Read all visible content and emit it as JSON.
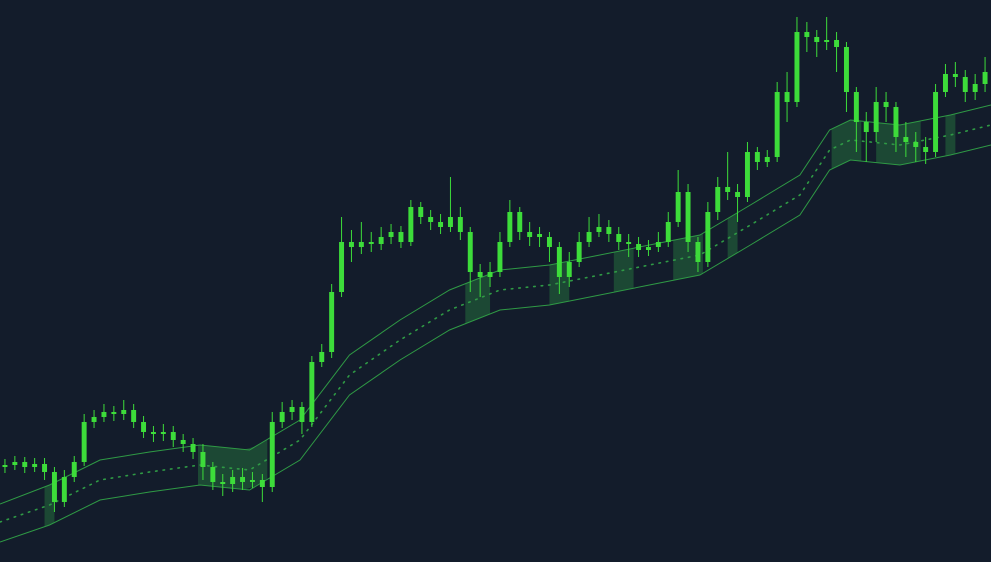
{
  "chart_data": {
    "type": "candlestick",
    "background": "#131c2b",
    "color": "#3ddc3a",
    "band_color": "#2f9a45",
    "zone_color": "#2f9a45",
    "xlim": [
      -0.5,
      99.6
    ],
    "ylim": [
      0,
      562
    ],
    "open": [
      95,
      97,
      100,
      95,
      98,
      90,
      60,
      85,
      100,
      140,
      145,
      150,
      148,
      152,
      140,
      130,
      128,
      130,
      122,
      118,
      110,
      95,
      80,
      78,
      85,
      80,
      82,
      75,
      140,
      150,
      155,
      140,
      200,
      210,
      270,
      320,
      315,
      320,
      318,
      325,
      330,
      320,
      355,
      345,
      340,
      335,
      345,
      330,
      290,
      285,
      290,
      320,
      350,
      330,
      328,
      325,
      315,
      285,
      300,
      320,
      330,
      335,
      328,
      320,
      318,
      312,
      315,
      320,
      340,
      370,
      320,
      300,
      350,
      375,
      370,
      365,
      410,
      400,
      405,
      470,
      460,
      530,
      525,
      520,
      522,
      515,
      470,
      440,
      430,
      460,
      455,
      425,
      420,
      415,
      410,
      470,
      488,
      485,
      470,
      478
    ],
    "high": [
      103,
      106,
      105,
      104,
      104,
      95,
      92,
      106,
      148,
      152,
      158,
      156,
      162,
      158,
      146,
      136,
      138,
      136,
      128,
      124,
      118,
      100,
      88,
      92,
      94,
      90,
      88,
      150,
      160,
      162,
      160,
      206,
      218,
      278,
      345,
      332,
      340,
      330,
      335,
      338,
      336,
      362,
      360,
      352,
      348,
      385,
      355,
      335,
      298,
      300,
      330,
      362,
      355,
      340,
      335,
      330,
      320,
      310,
      330,
      345,
      348,
      342,
      335,
      328,
      325,
      322,
      330,
      350,
      392,
      378,
      325,
      360,
      385,
      410,
      378,
      420,
      415,
      412,
      480,
      490,
      545,
      540,
      532,
      545,
      530,
      520,
      475,
      450,
      475,
      470,
      460,
      440,
      430,
      425,
      478,
      498,
      500,
      492,
      488,
      505
    ],
    "low": [
      89,
      92,
      89,
      90,
      82,
      50,
      55,
      80,
      96,
      134,
      140,
      141,
      142,
      134,
      124,
      120,
      121,
      115,
      110,
      103,
      82,
      72,
      66,
      70,
      72,
      74,
      60,
      70,
      134,
      142,
      128,
      135,
      195,
      204,
      265,
      300,
      308,
      310,
      312,
      318,
      314,
      316,
      338,
      332,
      328,
      330,
      322,
      270,
      265,
      275,
      285,
      315,
      322,
      316,
      315,
      300,
      268,
      275,
      295,
      315,
      325,
      320,
      312,
      305,
      305,
      306,
      310,
      315,
      335,
      310,
      290,
      295,
      342,
      362,
      340,
      360,
      392,
      395,
      400,
      440,
      455,
      510,
      505,
      512,
      490,
      450,
      410,
      400,
      420,
      440,
      410,
      405,
      400,
      398,
      405,
      465,
      475,
      460,
      462,
      470
    ],
    "close": [
      97,
      100,
      95,
      98,
      90,
      60,
      85,
      100,
      140,
      145,
      150,
      148,
      152,
      140,
      130,
      128,
      130,
      122,
      118,
      110,
      95,
      80,
      78,
      85,
      80,
      82,
      75,
      140,
      150,
      155,
      140,
      200,
      210,
      270,
      320,
      315,
      320,
      318,
      325,
      330,
      320,
      355,
      345,
      340,
      335,
      345,
      330,
      290,
      285,
      290,
      320,
      350,
      330,
      325,
      325,
      315,
      285,
      300,
      320,
      330,
      335,
      328,
      320,
      318,
      312,
      315,
      320,
      340,
      370,
      320,
      300,
      350,
      375,
      370,
      365,
      410,
      400,
      405,
      470,
      460,
      530,
      525,
      520,
      522,
      515,
      470,
      440,
      430,
      460,
      455,
      425,
      420,
      415,
      410,
      470,
      488,
      485,
      470,
      478,
      490
    ],
    "band": {
      "x": [
        -0.5,
        4.5,
        9.6,
        14.6,
        19.7,
        24.7,
        29.8,
        34.8,
        39.9,
        44.9,
        50,
        55,
        60.1,
        65.1,
        70.2,
        75.3,
        80.3,
        83.3,
        85.4,
        90.4,
        95.5,
        99.6
      ],
      "upper": [
        58,
        77,
        102,
        110,
        117,
        112,
        142,
        207,
        242,
        272,
        292,
        297,
        307,
        317,
        327,
        357,
        387,
        432,
        442,
        437,
        447,
        457
      ],
      "middle": [
        40,
        57,
        82,
        90,
        97,
        92,
        122,
        187,
        222,
        252,
        272,
        277,
        287,
        297,
        307,
        337,
        367,
        412,
        422,
        417,
        427,
        437
      ],
      "lower": [
        20,
        37,
        62,
        70,
        77,
        72,
        102,
        167,
        202,
        232,
        252,
        257,
        267,
        277,
        287,
        317,
        347,
        392,
        402,
        397,
        407,
        417
      ]
    },
    "zones": [
      [
        4,
        5
      ],
      [
        19.5,
        26.5
      ],
      [
        46.5,
        49
      ],
      [
        55,
        57
      ],
      [
        61.5,
        63.5
      ],
      [
        67.5,
        70.5
      ],
      [
        73,
        74
      ],
      [
        83.5,
        86.5
      ],
      [
        88,
        92.5
      ],
      [
        95,
        96
      ]
    ]
  }
}
